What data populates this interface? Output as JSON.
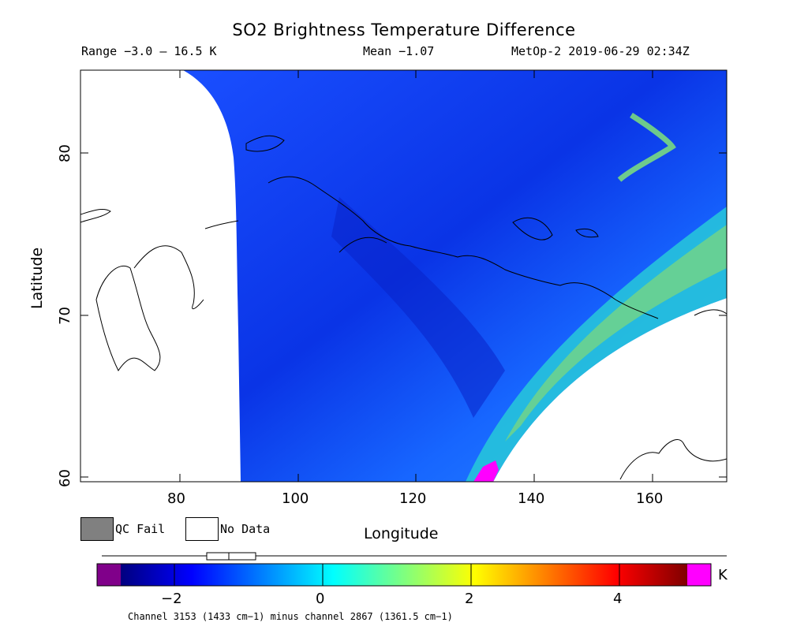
{
  "title": "SO2 Brightness Temperature Difference",
  "range_text": "Range −3.0 – 16.5 K",
  "mean_text": "Mean −1.07",
  "satellite_text": "MetOp-2  2019-06-29  02:34Z",
  "map": {
    "type": "swath-map",
    "xlim": [
      64,
      172
    ],
    "ylim": [
      59.5,
      85
    ],
    "xlabel": "Longitude",
    "ylabel": "Latitude",
    "xticks": [
      80,
      100,
      120,
      140,
      160
    ],
    "yticks": [
      60,
      70,
      80
    ],
    "background": "#ffffff"
  },
  "legend": {
    "qc_fail_label": "QC Fail",
    "qc_fail_color": "#808080",
    "no_data_label": "No Data",
    "no_data_color": "#ffffff"
  },
  "colorbar": {
    "min": -3.0,
    "max": 5.0,
    "unit": "K",
    "ticks": [
      "−2",
      "0",
      "2",
      "4"
    ],
    "tick_values": [
      -2,
      0,
      2,
      4
    ],
    "under_color": "#80008a",
    "over_color": "#ff00ff",
    "stops": [
      "#00007f",
      "#0000ff",
      "#007fff",
      "#00ffff",
      "#7fff7f",
      "#ffff00",
      "#ff7f00",
      "#ff0000",
      "#7f0000"
    ],
    "boxplot": {
      "whisker_low": -3.0,
      "q1": -1.55,
      "median": -1.23,
      "q3": -0.85,
      "whisker_high": 16.5
    }
  },
  "footnote": "Channel 3153 (1433 cm−1) minus channel 2867 (1361.5 cm−1)"
}
